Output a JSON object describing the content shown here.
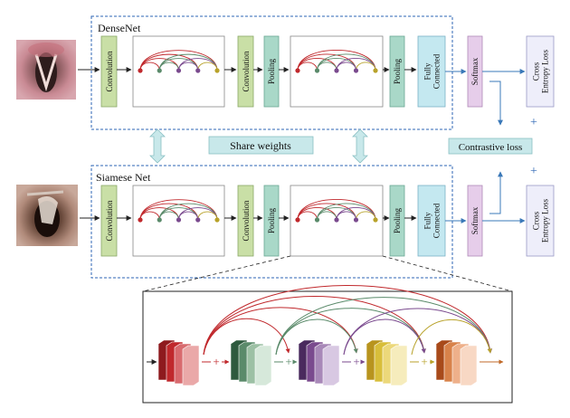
{
  "diagram": {
    "top_network": {
      "title": "DenseNet",
      "blocks": {
        "conv1": "Convolution",
        "conv2": "Convolution",
        "pool1": "Pooling",
        "pool2": "Pooling",
        "fc": "Fully Connected",
        "softmax": "Softmax",
        "loss": "Cross Entropy Loss"
      }
    },
    "bottom_network": {
      "title": "Siamese Net",
      "blocks": {
        "conv1": "Convolution",
        "conv2": "Convolution",
        "pool1": "Pooling",
        "pool2": "Pooling",
        "fc": "Fully Connected",
        "softmax": "Softmax",
        "loss": "Cross Entropy Loss"
      }
    },
    "share_weights": "Share weights",
    "contrastive_loss": "Contrastive loss",
    "plus_symbol": "+",
    "colors": {
      "conv_fill": "#c9dfa6",
      "pool_fill": "#a9d8c8",
      "fc_fill": "#c4e8f0",
      "softmax_fill": "#e6cdea",
      "loss_fill": "#eeeefa",
      "share_fill": "#c8e8ea",
      "dashed_border": "#2e66b5",
      "arrow_blue": "#3a78b8",
      "arc_red": "#c0282c",
      "arc_green": "#5a8a6a",
      "arc_purple": "#7a4a8e",
      "arc_olive": "#b8a22a",
      "node_orange": "#d9824a"
    }
  }
}
